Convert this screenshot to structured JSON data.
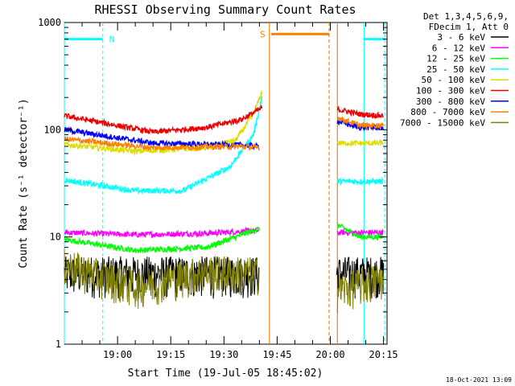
{
  "chart_data": {
    "type": "line",
    "title": "RHESSI Observing Summary Count Rates",
    "xlabel": "Start Time (19-Jul-05 18:45:02)",
    "ylabel": "Count Rate (s⁻¹ detector⁻¹)",
    "yscale": "log",
    "ylim": [
      1,
      1000
    ],
    "y_ticks": [
      {
        "v": 1,
        "label": "1"
      },
      {
        "v": 10,
        "label": "10"
      },
      {
        "v": 100,
        "label": "100"
      },
      {
        "v": 1000,
        "label": "1000"
      }
    ],
    "xlim": [
      0,
      5460
    ],
    "x_ticks": [
      {
        "t": 900,
        "label": "19:00"
      },
      {
        "t": 1800,
        "label": "19:15"
      },
      {
        "t": 2700,
        "label": "19:30"
      },
      {
        "t": 3600,
        "label": "19:45"
      },
      {
        "t": 4500,
        "label": "20:00"
      },
      {
        "t": 5400,
        "label": "20:15"
      }
    ],
    "legend_header": [
      "Det 1,3,4,5,6,9,",
      "FDecim 1, Att 0"
    ],
    "series": [
      {
        "name": "3 - 6 keV",
        "color": "#000000",
        "kind": "noisy",
        "points": [
          [
            0,
            2.2
          ],
          [
            3300,
            2.2
          ]
        ],
        "after": [
          [
            4600,
            2.2
          ],
          [
            5400,
            2.2
          ]
        ],
        "noise": [
          1.2,
          3
        ]
      },
      {
        "name": "6 - 12 keV",
        "color": "#ff00ff",
        "points": [
          [
            0,
            11
          ],
          [
            1200,
            10.5
          ],
          [
            2400,
            10.8
          ],
          [
            3300,
            11.5
          ]
        ],
        "after": [
          [
            4620,
            11
          ],
          [
            5400,
            11
          ]
        ]
      },
      {
        "name": "12 - 25 keV",
        "color": "#00ff00",
        "points": [
          [
            0,
            9.5
          ],
          [
            1200,
            7.5
          ],
          [
            2400,
            8
          ],
          [
            3300,
            12
          ]
        ],
        "after": [
          [
            4620,
            13
          ],
          [
            5000,
            10
          ],
          [
            5400,
            10
          ]
        ]
      },
      {
        "name": "25 - 50 keV",
        "color": "#00ffff",
        "points": [
          [
            0,
            34
          ],
          [
            1200,
            27
          ],
          [
            2000,
            27
          ],
          [
            2800,
            45
          ],
          [
            3200,
            90
          ],
          [
            3350,
            210
          ]
        ],
        "after": [
          [
            4620,
            33
          ],
          [
            5400,
            33
          ]
        ]
      },
      {
        "name": "50 - 100 keV",
        "color": "#dddd00",
        "points": [
          [
            0,
            73
          ],
          [
            1200,
            63
          ],
          [
            2400,
            68
          ],
          [
            2900,
            80
          ],
          [
            3200,
            140
          ],
          [
            3350,
            230
          ]
        ],
        "after": [
          [
            4620,
            75
          ],
          [
            5400,
            75
          ]
        ]
      },
      {
        "name": "100 - 300 keV",
        "color": "#ee0000",
        "points": [
          [
            0,
            135
          ],
          [
            1500,
            95
          ],
          [
            2400,
            105
          ],
          [
            3000,
            125
          ],
          [
            3350,
            160
          ]
        ],
        "after": [
          [
            4620,
            155
          ],
          [
            5000,
            140
          ],
          [
            5400,
            135
          ]
        ]
      },
      {
        "name": "300 - 800 keV",
        "color": "#0000ff",
        "points": [
          [
            0,
            100
          ],
          [
            1500,
            75
          ],
          [
            3000,
            72
          ],
          [
            3300,
            70
          ]
        ],
        "after": [
          [
            4620,
            120
          ],
          [
            5000,
            105
          ],
          [
            5400,
            105
          ]
        ]
      },
      {
        "name": "800 - 7000 keV",
        "color": "#ff8000",
        "points": [
          [
            0,
            82
          ],
          [
            1500,
            68
          ],
          [
            3000,
            70
          ],
          [
            3300,
            68
          ]
        ],
        "after": [
          [
            4620,
            130
          ],
          [
            5000,
            110
          ],
          [
            5400,
            110
          ]
        ]
      },
      {
        "name": "7000 - 15000 keV",
        "color": "#808000",
        "kind": "noisy",
        "points": [
          [
            0,
            6
          ],
          [
            1200,
            3.8
          ],
          [
            2400,
            5.2
          ],
          [
            3300,
            5
          ]
        ],
        "after": [
          [
            4620,
            3.5
          ],
          [
            5400,
            4.5
          ]
        ],
        "noise": [
          0.55,
          1.3
        ]
      }
    ],
    "markers": {
      "saa_vlines": [
        {
          "t": 0,
          "style": "solid"
        },
        {
          "t": 650,
          "style": "dashed"
        },
        {
          "t": 5070,
          "style": "solid"
        },
        {
          "t": 5420,
          "style": "dashed"
        }
      ],
      "night_vlines": [
        {
          "t": 3470,
          "style": "solid"
        },
        {
          "t": 4480,
          "style": "dashed"
        },
        {
          "t": 4620,
          "style": "solid"
        }
      ],
      "saa_bars": [
        {
          "t0": 0,
          "t1": 650,
          "y": 700
        },
        {
          "t0": 5070,
          "t1": 5420,
          "y": 700
        }
      ],
      "night_bar": {
        "t0": 3500,
        "t1": 4480,
        "y": 780
      },
      "saa_label": "N",
      "night_label": "S",
      "saa_color": "#00ffff",
      "night_color": "#ff8000"
    },
    "gap": [
      3360,
      4600
    ]
  },
  "footer": {
    "timestamp": "18-Oct-2021 13:09"
  }
}
